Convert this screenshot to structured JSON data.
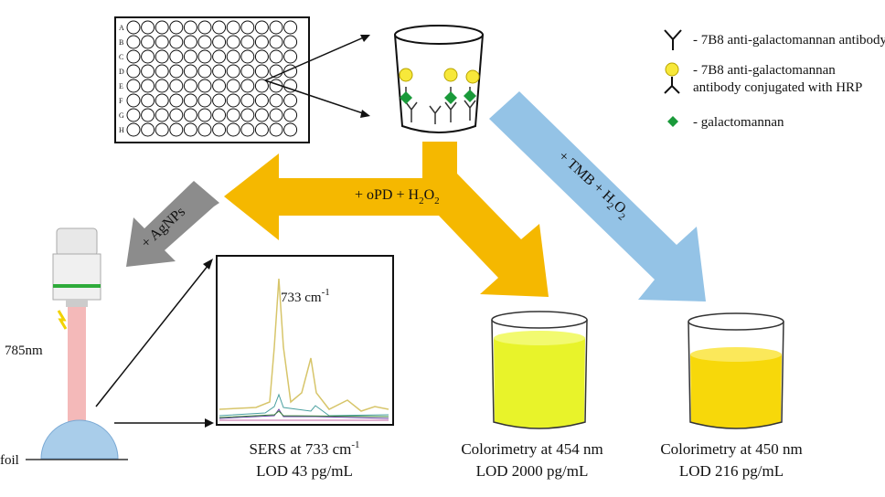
{
  "plate": {
    "rows": [
      "A",
      "B",
      "C",
      "D",
      "E",
      "F",
      "G",
      "H"
    ]
  },
  "legend": {
    "antibody": "- 7B8 anti-galactomannan antibody",
    "conjugate": [
      "- 7B8 anti-galactomannan",
      "antibody conjugated with HRP"
    ],
    "antigen": "- galactomannan"
  },
  "arrows": {
    "opd": [
      "+ oPD + H",
      "2",
      "O",
      "2"
    ],
    "tmb": [
      "+ TMB + H",
      "2",
      "O",
      "2"
    ],
    "agnps": "+ AgNPs"
  },
  "sers": {
    "peak": [
      "733 cm",
      "-1"
    ],
    "laser": "785nm",
    "foil": "foil",
    "caption": [
      "SERS at 733 cm",
      "-1"
    ],
    "lod": "LOD 43 pg/mL"
  },
  "colorimetry_opd": {
    "caption": "Colorimetry at 454 nm",
    "lod": "LOD 2000 pg/mL"
  },
  "colorimetry_tmb": {
    "caption": "Colorimetry at 450 nm",
    "lod": "LOD 216 pg/mL"
  }
}
